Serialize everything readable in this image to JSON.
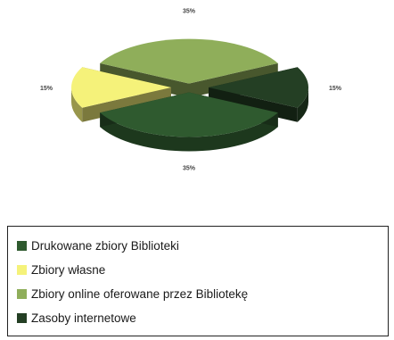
{
  "chart_data": {
    "type": "pie",
    "style": "3d-exploded",
    "legend_position": "bottom",
    "slices": [
      {
        "name": "Drukowane zbiory Biblioteki",
        "value": 35,
        "label": "35%",
        "color": "#2f5a2f"
      },
      {
        "name": "Zbiory własne",
        "value": 15,
        "label": "15%",
        "color": "#f5f27a"
      },
      {
        "name": "Zbiory online oferowane przez Bibliotekę",
        "value": 35,
        "label": "35%",
        "color": "#8fae5a"
      },
      {
        "name": "Zasoby internetowe",
        "value": 15,
        "label": "15%",
        "color": "#243f24"
      }
    ]
  }
}
